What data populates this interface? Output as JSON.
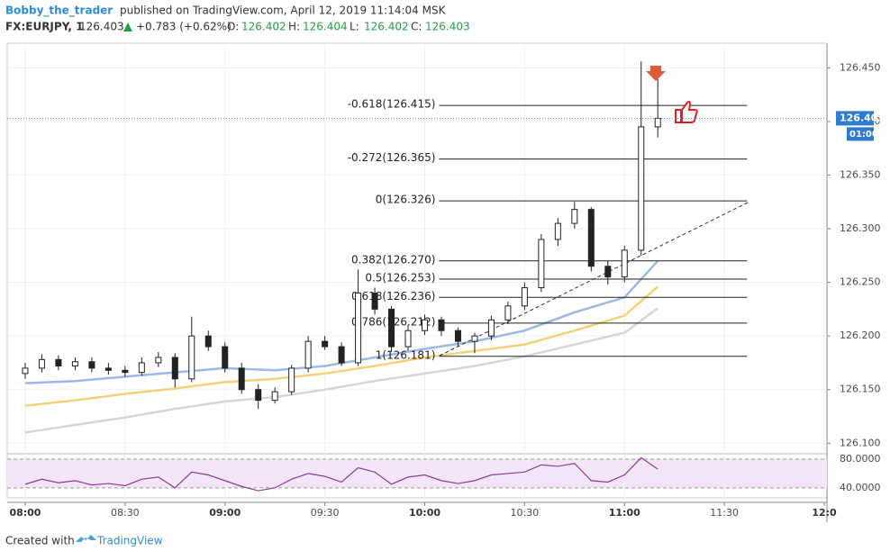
{
  "chart_data": {
    "type": "candlestick",
    "header": {
      "author": "Bobby_the_trader",
      "published": "published on TradingView.com, April 12, 2019 11:14:04 MSK",
      "symbol": "FX:EURJPY, 1",
      "last": "126.403",
      "change": "+0.783 (+0.62%)",
      "ohlc": [
        {
          "key": "O:",
          "value": "126.402"
        },
        {
          "key": "H:",
          "value": "126.404"
        },
        {
          "key": "L:",
          "value": "126.402"
        },
        {
          "key": "C:",
          "value": "126.403"
        }
      ]
    },
    "x": [
      0,
      5,
      10,
      15,
      20,
      25,
      30,
      35,
      40,
      45,
      50,
      55,
      60,
      65,
      70,
      75,
      80,
      85,
      90,
      95,
      100,
      105,
      110,
      115,
      120,
      125,
      130,
      135,
      140,
      145,
      150,
      155,
      160,
      165,
      170,
      175,
      180,
      185,
      190
    ],
    "open": [
      126.165,
      126.17,
      126.178,
      126.172,
      126.176,
      126.17,
      126.168,
      126.166,
      126.175,
      126.18,
      126.16,
      126.2,
      126.19,
      126.17,
      126.15,
      126.14,
      126.148,
      126.17,
      126.195,
      126.19,
      126.175,
      126.24,
      126.225,
      126.19,
      126.205,
      126.215,
      126.205,
      126.195,
      126.2,
      126.215,
      126.228,
      126.245,
      126.29,
      126.305,
      126.318,
      126.265,
      126.255,
      126.28,
      126.395
    ],
    "high": [
      126.175,
      126.183,
      126.182,
      126.18,
      126.18,
      126.175,
      126.172,
      126.18,
      126.185,
      126.184,
      126.218,
      126.205,
      126.194,
      126.175,
      126.155,
      126.152,
      126.173,
      126.2,
      126.2,
      126.194,
      126.262,
      126.245,
      126.228,
      126.21,
      126.22,
      126.218,
      126.208,
      126.203,
      126.219,
      126.232,
      126.25,
      126.295,
      126.31,
      126.325,
      126.32,
      126.27,
      126.284,
      126.456,
      126.44
    ],
    "low": [
      126.16,
      126.166,
      126.168,
      126.168,
      126.166,
      126.164,
      126.162,
      126.163,
      126.171,
      126.152,
      126.157,
      126.186,
      126.166,
      126.146,
      126.132,
      126.137,
      126.145,
      126.166,
      126.187,
      126.172,
      126.172,
      126.22,
      126.185,
      126.186,
      126.201,
      126.2,
      126.19,
      126.184,
      126.196,
      126.211,
      126.224,
      126.241,
      126.284,
      126.3,
      126.26,
      126.248,
      126.25,
      126.275,
      126.385
    ],
    "close": [
      126.17,
      126.178,
      126.172,
      126.176,
      126.17,
      126.168,
      126.166,
      126.175,
      126.18,
      126.16,
      126.2,
      126.19,
      126.17,
      126.15,
      126.14,
      126.148,
      126.17,
      126.195,
      126.19,
      126.175,
      126.24,
      126.225,
      126.19,
      126.205,
      126.215,
      126.205,
      126.195,
      126.2,
      126.215,
      126.228,
      126.245,
      126.29,
      126.305,
      126.318,
      126.265,
      126.255,
      126.28,
      126.395,
      126.403
    ],
    "xlim": [
      -5.4,
      240.8
    ],
    "xticks": [
      {
        "value": 0,
        "label": "08:00"
      },
      {
        "value": 30,
        "label": "08:30"
      },
      {
        "value": 60,
        "label": "09:00"
      },
      {
        "value": 90,
        "label": "09:30"
      },
      {
        "value": 120,
        "label": "10:00"
      },
      {
        "value": 150,
        "label": "10:30"
      },
      {
        "value": 180,
        "label": "11:00"
      },
      {
        "value": 210,
        "label": "11:30"
      },
      {
        "value": 240,
        "label": "12:0"
      }
    ],
    "ylim": [
      126.091,
      126.473
    ],
    "yticks": [
      {
        "value": 126.1,
        "label": "126.100"
      },
      {
        "value": 126.15,
        "label": "126.150"
      },
      {
        "value": 126.2,
        "label": "126.200"
      },
      {
        "value": 126.25,
        "label": "126.250"
      },
      {
        "value": 126.3,
        "label": "126.300"
      },
      {
        "value": 126.35,
        "label": "126.350"
      },
      {
        "value": 126.4,
        "label": "126.400"
      },
      {
        "value": 126.45,
        "label": "126.450"
      }
    ],
    "grid": true,
    "moving_averages": {
      "x": [
        0,
        15,
        30,
        45,
        60,
        75,
        90,
        105,
        120,
        135,
        150,
        165,
        180,
        190
      ],
      "series": [
        {
          "color": "#9bb8e8",
          "values": [
            126.156,
            126.158,
            126.162,
            126.166,
            126.17,
            126.168,
            126.172,
            126.18,
            126.188,
            126.195,
            126.205,
            126.222,
            126.236,
            126.27
          ]
        },
        {
          "color": "#f5d27a",
          "values": [
            126.135,
            126.14,
            126.146,
            126.151,
            126.157,
            126.16,
            126.165,
            126.172,
            126.18,
            126.186,
            126.192,
            126.205,
            126.219,
            126.246
          ]
        },
        {
          "color": "#d6d6d6",
          "values": [
            126.11,
            126.117,
            126.124,
            126.132,
            126.139,
            126.143,
            126.15,
            126.158,
            126.165,
            126.172,
            126.181,
            126.192,
            126.203,
            126.226
          ]
        }
      ]
    },
    "fib_levels": [
      {
        "label": "-0.618(126.415)",
        "value": 126.415
      },
      {
        "label": "-0.272(126.365)",
        "value": 126.365
      },
      {
        "label": "0(126.326)",
        "value": 126.326
      },
      {
        "label": "0.382(126.270)",
        "value": 126.27
      },
      {
        "label": "0.5(126.253)",
        "value": 126.253
      },
      {
        "label": "0.618(126.236)",
        "value": 126.236
      },
      {
        "label": "0.786(126.212)",
        "value": 126.212
      },
      {
        "label": "1(126.181)",
        "value": 126.181
      }
    ],
    "last_price": 126.403,
    "countdown": "01:00",
    "rsi": {
      "color": "#8e3a9e",
      "values": [
        45,
        52,
        47,
        50,
        44,
        46,
        43,
        52,
        55,
        40,
        62,
        58,
        50,
        42,
        36,
        40,
        52,
        60,
        56,
        48,
        68,
        62,
        45,
        55,
        58,
        50,
        46,
        50,
        58,
        60,
        62,
        72,
        70,
        74,
        50,
        48,
        58,
        82,
        66
      ],
      "ylim": [
        26,
        86.25
      ],
      "yticks": [
        {
          "value": 80,
          "label": "80.0000"
        },
        {
          "value": 40,
          "label": "40.0000"
        }
      ]
    },
    "footer": {
      "prefix": "Created with",
      "brand": "TradingView"
    }
  }
}
